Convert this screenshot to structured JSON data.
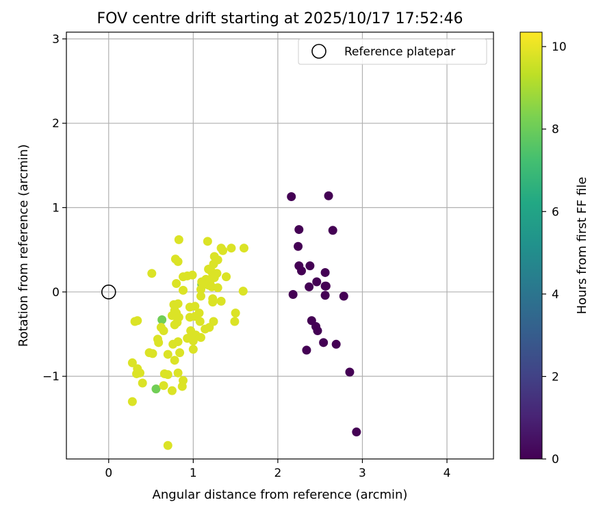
{
  "chart_data": {
    "type": "scatter",
    "title": "FOV centre drift starting at 2025/10/17 17:52:46",
    "xlabel": "Angular distance from reference (arcmin)",
    "ylabel": "Rotation from reference (arcmin)",
    "xlim": [
      -0.5,
      4.55
    ],
    "ylim": [
      -1.98,
      3.08
    ],
    "xticks": [
      0,
      1,
      2,
      3,
      4
    ],
    "xtick_labels": [
      "0",
      "1",
      "2",
      "3",
      "4"
    ],
    "yticks": [
      -1,
      0,
      1,
      2,
      3
    ],
    "ytick_labels": [
      "−1",
      "0",
      "1",
      "2",
      "3"
    ],
    "grid": true,
    "legend": {
      "placement": "top-right",
      "entries": [
        {
          "label": "Reference platepar",
          "marker": "open-circle"
        }
      ]
    },
    "colorbar": {
      "label": "Hours from first FF file",
      "colormap": "viridis",
      "range": [
        0,
        10.35
      ],
      "ticks": [
        0,
        2,
        4,
        6,
        8,
        10
      ],
      "tick_labels": [
        "0",
        "2",
        "4",
        "6",
        "8",
        "10"
      ]
    },
    "reference_point": {
      "x": 0,
      "y": 0
    },
    "series": [
      {
        "points": [
          [
            2.16,
            1.13
          ],
          [
            2.6,
            1.14
          ],
          [
            2.25,
            0.74
          ],
          [
            2.65,
            0.73
          ],
          [
            2.24,
            0.54
          ],
          [
            2.25,
            0.31
          ],
          [
            2.38,
            0.31
          ],
          [
            2.28,
            0.25
          ],
          [
            2.56,
            0.23
          ],
          [
            2.46,
            0.12
          ],
          [
            2.37,
            0.06
          ],
          [
            2.56,
            0.07
          ],
          [
            2.57,
            0.07
          ],
          [
            2.18,
            -0.03
          ],
          [
            2.56,
            -0.04
          ],
          [
            2.78,
            -0.05
          ],
          [
            2.4,
            -0.34
          ],
          [
            2.45,
            -0.41
          ],
          [
            2.47,
            -0.46
          ],
          [
            2.54,
            -0.6
          ],
          [
            2.69,
            -0.62
          ],
          [
            2.34,
            -0.69
          ],
          [
            2.85,
            -0.95
          ],
          [
            2.93,
            -1.66
          ]
        ],
        "hours": 0.0
      },
      {
        "points": [
          [
            0.63,
            -0.33
          ],
          [
            0.56,
            -1.15
          ],
          [
            1.1,
            0.09
          ]
        ],
        "hours": 8.1
      },
      {
        "points": [
          [
            0.83,
            0.62
          ],
          [
            1.17,
            0.6
          ],
          [
            1.33,
            0.52
          ],
          [
            1.45,
            0.52
          ],
          [
            1.6,
            0.52
          ],
          [
            1.35,
            0.49
          ],
          [
            1.25,
            0.42
          ],
          [
            1.29,
            0.38
          ],
          [
            0.79,
            0.39
          ],
          [
            0.82,
            0.36
          ],
          [
            1.18,
            0.27
          ],
          [
            1.24,
            0.33
          ],
          [
            1.21,
            0.25
          ],
          [
            1.28,
            0.22
          ],
          [
            0.51,
            0.22
          ],
          [
            0.88,
            0.18
          ],
          [
            0.93,
            0.19
          ],
          [
            0.99,
            0.2
          ],
          [
            1.23,
            0.19
          ],
          [
            1.39,
            0.18
          ],
          [
            1.15,
            0.15
          ],
          [
            1.2,
            0.13
          ],
          [
            1.25,
            0.17
          ],
          [
            1.1,
            0.12
          ],
          [
            0.8,
            0.1
          ],
          [
            1.13,
            0.09
          ],
          [
            1.18,
            0.08
          ],
          [
            1.22,
            0.06
          ],
          [
            1.29,
            0.05
          ],
          [
            1.09,
            0.03
          ],
          [
            0.88,
            0.02
          ],
          [
            1.59,
            0.01
          ],
          [
            1.09,
            -0.05
          ],
          [
            1.23,
            -0.08
          ],
          [
            1.33,
            -0.11
          ],
          [
            0.77,
            -0.15
          ],
          [
            0.82,
            -0.14
          ],
          [
            1.23,
            -0.12
          ],
          [
            0.96,
            -0.18
          ],
          [
            1.02,
            -0.17
          ],
          [
            0.78,
            -0.22
          ],
          [
            0.8,
            -0.25
          ],
          [
            1.07,
            -0.25
          ],
          [
            1.5,
            -0.25
          ],
          [
            0.75,
            -0.28
          ],
          [
            0.83,
            -0.3
          ],
          [
            0.96,
            -0.3
          ],
          [
            1.02,
            -0.29
          ],
          [
            0.34,
            -0.34
          ],
          [
            0.31,
            -0.35
          ],
          [
            0.81,
            -0.36
          ],
          [
            1.08,
            -0.35
          ],
          [
            1.24,
            -0.35
          ],
          [
            1.49,
            -0.35
          ],
          [
            0.78,
            -0.39
          ],
          [
            0.62,
            -0.42
          ],
          [
            0.65,
            -0.46
          ],
          [
            0.97,
            -0.46
          ],
          [
            1.14,
            -0.44
          ],
          [
            1.19,
            -0.42
          ],
          [
            1.03,
            -0.51
          ],
          [
            0.96,
            -0.54
          ],
          [
            1.09,
            -0.54
          ],
          [
            0.93,
            -0.55
          ],
          [
            0.58,
            -0.56
          ],
          [
            1.0,
            -0.58
          ],
          [
            0.82,
            -0.59
          ],
          [
            0.59,
            -0.6
          ],
          [
            0.76,
            -0.62
          ],
          [
            1.0,
            -0.68
          ],
          [
            0.48,
            -0.72
          ],
          [
            0.52,
            -0.73
          ],
          [
            0.7,
            -0.74
          ],
          [
            0.84,
            -0.72
          ],
          [
            0.78,
            -0.81
          ],
          [
            0.28,
            -0.84
          ],
          [
            0.34,
            -0.91
          ],
          [
            0.37,
            -0.96
          ],
          [
            0.33,
            -0.97
          ],
          [
            0.66,
            -0.97
          ],
          [
            0.7,
            -0.98
          ],
          [
            0.82,
            -0.96
          ],
          [
            0.88,
            -1.05
          ],
          [
            0.4,
            -1.08
          ],
          [
            0.65,
            -1.11
          ],
          [
            0.87,
            -1.12
          ],
          [
            0.75,
            -1.17
          ],
          [
            0.28,
            -1.3
          ],
          [
            0.7,
            -1.82
          ]
        ],
        "hours": 9.8
      }
    ]
  }
}
